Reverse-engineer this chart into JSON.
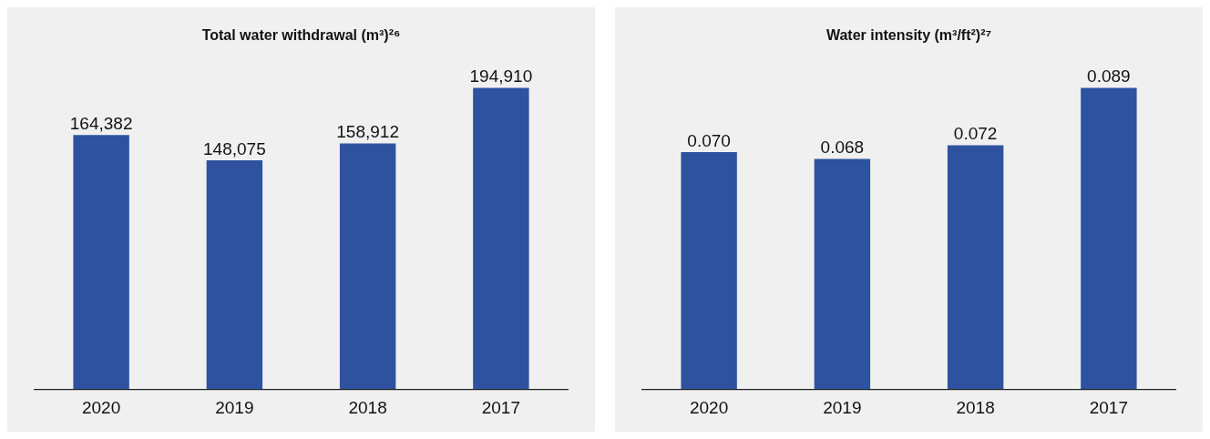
{
  "chart_data": [
    {
      "type": "bar",
      "title": "Total water withdrawal (m³)²⁶",
      "categories": [
        "2020",
        "2019",
        "2018",
        "2017"
      ],
      "values": [
        164382,
        148075,
        158912,
        194910
      ],
      "value_labels": [
        "164,382",
        "148,075",
        "158,912",
        "194,910"
      ],
      "color": "#2e52a0",
      "grid": false,
      "legend": false,
      "tick_labels": "x"
    },
    {
      "type": "bar",
      "title": "Water intensity (m³/ft²)²⁷",
      "categories": [
        "2020",
        "2019",
        "2018",
        "2017"
      ],
      "values": [
        0.07,
        0.068,
        0.072,
        0.089
      ],
      "value_labels": [
        "0.070",
        "0.068",
        "0.072",
        "0.089"
      ],
      "color": "#2e52a0",
      "grid": false,
      "legend": false,
      "tick_labels": "x"
    }
  ]
}
